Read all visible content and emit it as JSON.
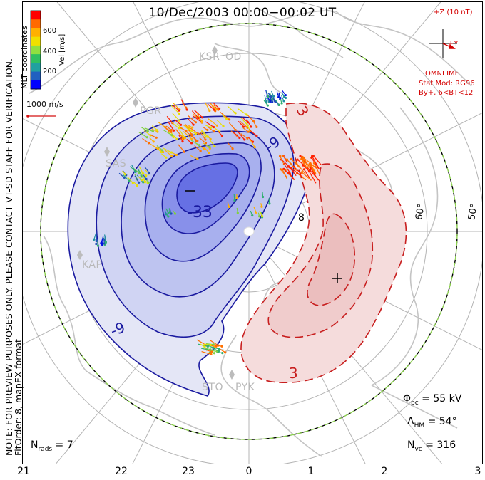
{
  "title": "10/Dec/2003 00:00−00:02 UT",
  "note_line1": "NOTE: FOR PREVIEW PURPOSES ONLY. PLEASE CONTACT VT-SD STAFF FOR VERIFICATION.",
  "note_line2": "FitOrder: 8,  mapEX format",
  "colorbar": {
    "label": "Vel [m/s]",
    "ticks": [
      "600",
      "400",
      "200"
    ],
    "colors": [
      "#ff0000",
      "#ff6a00",
      "#ffb000",
      "#f0e000",
      "#90e040",
      "#30c060",
      "#20a0a0",
      "#2060c0",
      "#0000ff"
    ]
  },
  "coord_label": "MLT coordinates",
  "reference_vector": "1000 m/s",
  "imf": {
    "axis_z": "+Z (10 nT)",
    "axis_y": "+Y",
    "source": "OMNI IMF",
    "model": "Stat Mod: RG96",
    "condition": "By+, 6<BT<12"
  },
  "stats": {
    "phi_symbol": "Φ",
    "phi_sub": "pc",
    "phi_val": " = 55 kV",
    "lambda_symbol": "Λ",
    "lambda_sub": "HM",
    "lambda_val": " = 54°",
    "nvc_symbol": "N",
    "nvc_sub": "vc",
    "nvc_val": " = 316",
    "nrads_symbol": "N",
    "nrads_sub": "rads",
    "nrads_val": " = 7"
  },
  "x_ticks": [
    "21",
    "22",
    "23",
    "0",
    "1",
    "2",
    "3"
  ],
  "mlat_labels": [
    "60°",
    "50°"
  ],
  "stations": [
    "KSR",
    "OD",
    "PGR",
    "SAS",
    "KAP",
    "STO",
    "PYK"
  ],
  "contour_labels": [
    "-33",
    "-9",
    "-9",
    "8",
    "3",
    "3"
  ],
  "potential_extrema": {
    "min": "-",
    "max": "+"
  },
  "map_colors": {
    "negative_fill": "#a8b0ee",
    "positive_fill": "#f5d8d8",
    "negative_line": "#1a1aa0",
    "positive_line": "#c81e1e",
    "boundary": "#8cd050",
    "coast": "#c8c8c8"
  }
}
